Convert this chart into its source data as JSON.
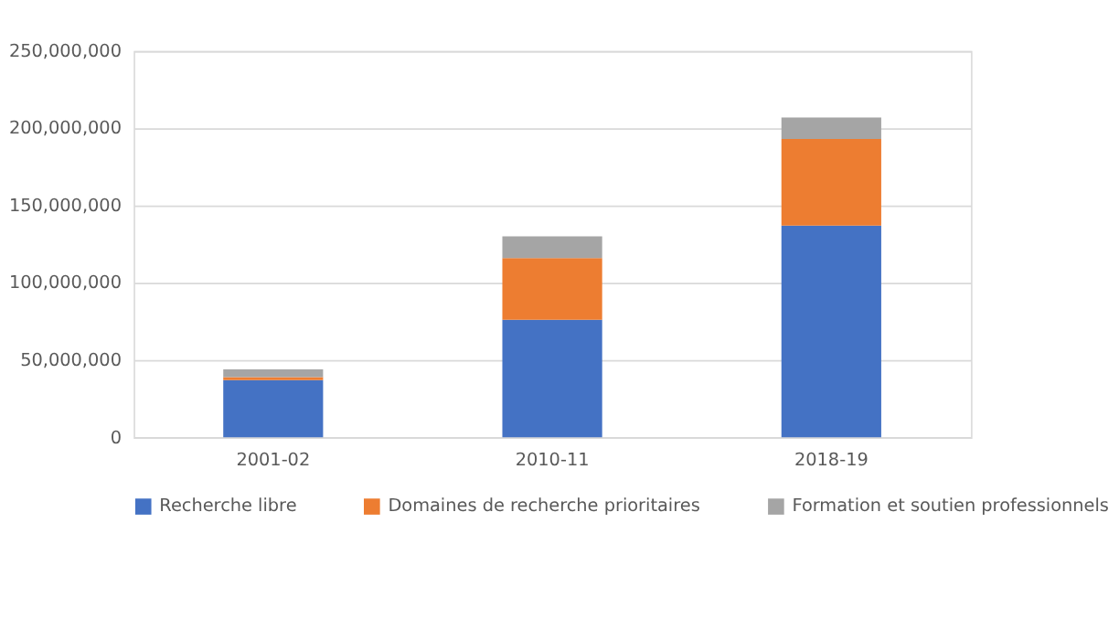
{
  "chart_data": {
    "type": "bar",
    "stacked": true,
    "categories": [
      "2001-02",
      "2010-11",
      "2018-19"
    ],
    "series": [
      {
        "name": "Recherche libre",
        "color": "#4472c4",
        "values": [
          37000000,
          76000000,
          137000000
        ]
      },
      {
        "name": "Domaines de recherche prioritaires",
        "color": "#ed7d31",
        "values": [
          2000000,
          40000000,
          56000000
        ]
      },
      {
        "name": "Formation et soutien professionnels",
        "color": "#a5a5a5",
        "values": [
          5000000,
          14000000,
          14000000
        ]
      }
    ],
    "ylim": [
      0,
      250000000
    ],
    "yticks": [
      0,
      {
        "value": 50000000,
        "label": "50,000,000"
      },
      {
        "value": 100000000,
        "label": "100,000,000"
      },
      {
        "value": 150000000,
        "label": "150,000,000"
      },
      {
        "value": 200000000,
        "label": "200,000,000"
      },
      {
        "value": 250000000,
        "label": "250,000,000"
      }
    ],
    "grid": "y",
    "legend": "bottom"
  }
}
